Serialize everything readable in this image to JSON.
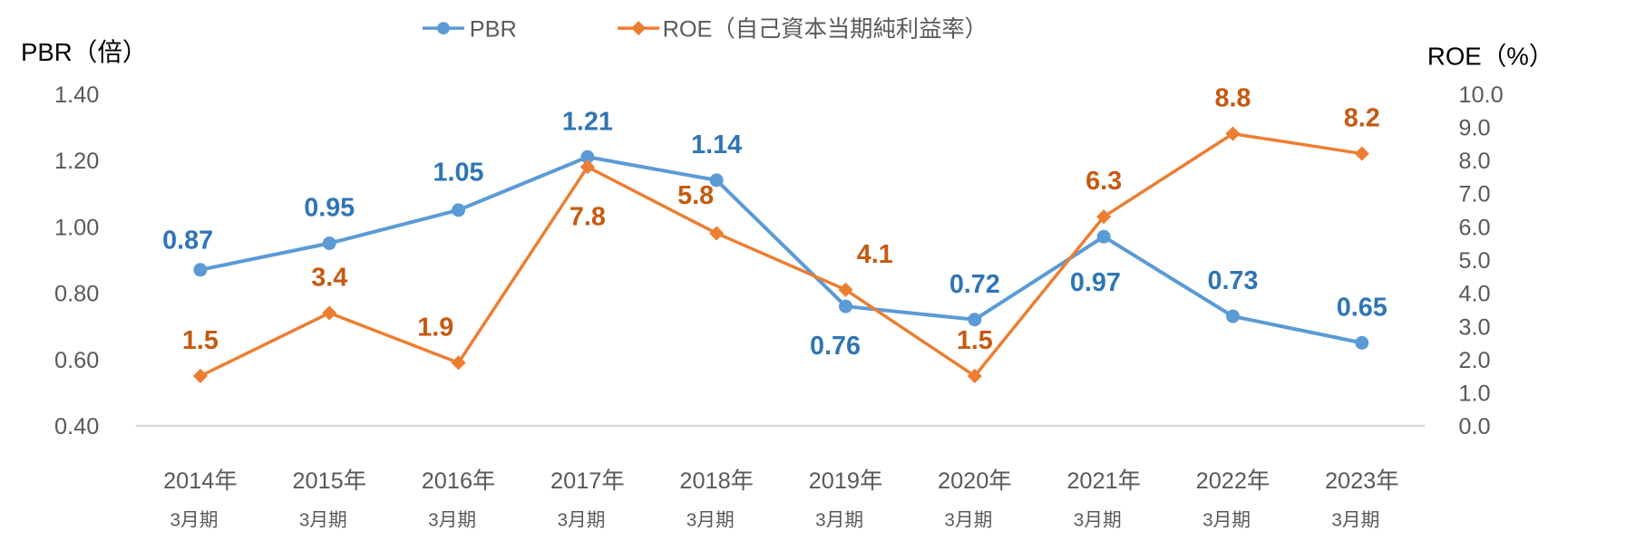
{
  "chart_data": {
    "type": "line",
    "categories": [
      [
        "2014年",
        "3月期"
      ],
      [
        "2015年",
        "3月期"
      ],
      [
        "2016年",
        "3月期"
      ],
      [
        "2017年",
        "3月期"
      ],
      [
        "2018年",
        "3月期"
      ],
      [
        "2019年",
        "3月期"
      ],
      [
        "2020年",
        "3月期"
      ],
      [
        "2021年",
        "3月期"
      ],
      [
        "2022年",
        "3月期"
      ],
      [
        "2023年",
        "3月期"
      ]
    ],
    "y_left": {
      "label": "PBR（倍）",
      "range": [
        0.4,
        1.4
      ],
      "ticks": [
        "0.40",
        "0.60",
        "0.80",
        "1.00",
        "1.20",
        "1.40"
      ]
    },
    "y_right": {
      "label": "ROE（%）",
      "range": [
        0.0,
        10.0
      ],
      "ticks": [
        "0.0",
        "1.0",
        "2.0",
        "3.0",
        "4.0",
        "5.0",
        "6.0",
        "7.0",
        "8.0",
        "9.0",
        "10.0"
      ]
    },
    "grid": false,
    "legend_position": "top",
    "series": [
      {
        "name": "PBR",
        "axis": "left",
        "color": "#5b9bd5",
        "label_color": "#2e75b6",
        "marker": "circle",
        "values": [
          0.87,
          0.95,
          1.05,
          1.21,
          1.14,
          0.76,
          0.72,
          0.97,
          0.73,
          0.65
        ],
        "labels": [
          "0.87",
          "0.95",
          "1.05",
          "1.21",
          "1.14",
          "0.76",
          "0.72",
          "0.97",
          "0.73",
          "0.65"
        ]
      },
      {
        "name": "ROE（自己資本当期純利益率）",
        "axis": "right",
        "color": "#ed7d31",
        "label_color": "#c55a11",
        "marker": "diamond",
        "values": [
          1.5,
          3.4,
          1.9,
          7.8,
          5.8,
          4.1,
          1.5,
          6.3,
          8.8,
          8.2
        ],
        "labels": [
          "1.5",
          "3.4",
          "1.9",
          "7.8",
          "5.8",
          "4.1",
          "1.5",
          "6.3",
          "8.8",
          "8.2"
        ]
      }
    ]
  }
}
